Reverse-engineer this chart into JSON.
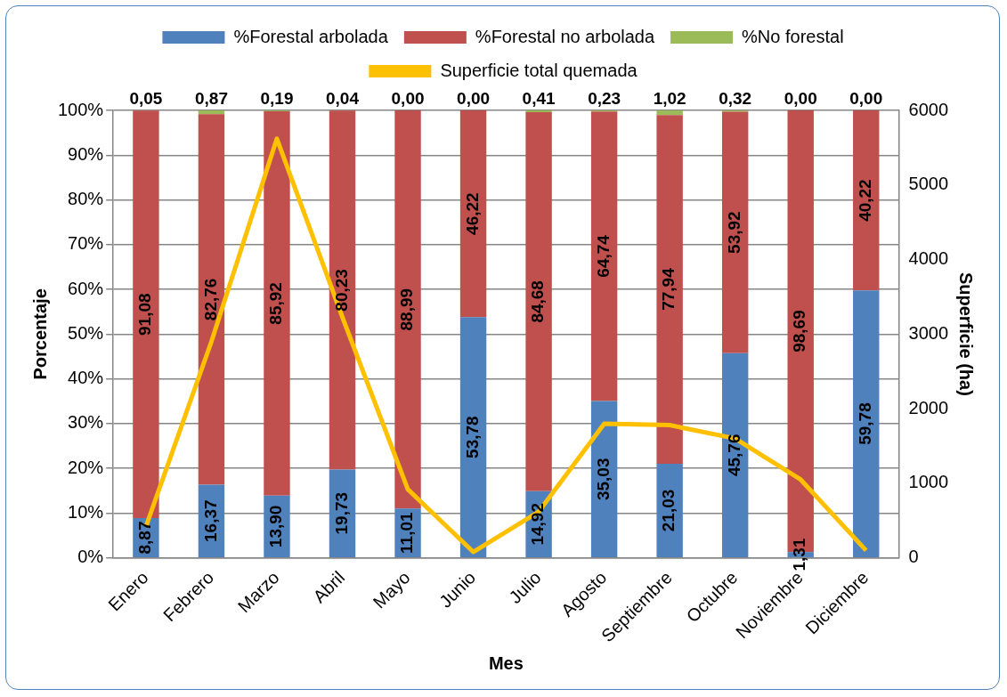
{
  "chart_data": {
    "type": "bar",
    "stacked": true,
    "xlabel": "Mes",
    "ylabel": "Porcentaje",
    "y2label": "Superficie (ha)",
    "categories": [
      "Enero",
      "Febrero",
      "Marzo",
      "Abril",
      "Mayo",
      "Junio",
      "Julio",
      "Agosto",
      "Septiembre",
      "Octubre",
      "Noviembre",
      "Diciembre"
    ],
    "series": [
      {
        "name": "%Forestal arbolada",
        "color": "#4f81bd",
        "values": [
          8.87,
          16.37,
          13.9,
          19.73,
          11.01,
          53.78,
          14.92,
          35.03,
          21.03,
          45.76,
          1.31,
          59.78
        ],
        "value_labels": [
          "8,87",
          "16,37",
          "13,90",
          "19,73",
          "11,01",
          "53,78",
          "14,92",
          "35,03",
          "21,03",
          "45,76",
          "1,31",
          "59,78"
        ]
      },
      {
        "name": "%Forestal no arbolada",
        "color": "#c0504d",
        "values": [
          91.08,
          82.76,
          85.92,
          80.23,
          88.99,
          46.22,
          84.68,
          64.74,
          77.94,
          53.92,
          98.69,
          40.22
        ],
        "value_labels": [
          "91,08",
          "82,76",
          "85,92",
          "80,23",
          "88,99",
          "46,22",
          "84,68",
          "64,74",
          "77,94",
          "53,92",
          "98,69",
          "40,22"
        ]
      },
      {
        "name": "%No forestal",
        "color": "#9bbb59",
        "values": [
          0.05,
          0.87,
          0.19,
          0.04,
          0.0,
          0.0,
          0.41,
          0.23,
          1.02,
          0.32,
          0.0,
          0.0
        ],
        "value_labels": [
          "0,05",
          "0,87",
          "0,19",
          "0,04",
          "0,00",
          "0,00",
          "0,41",
          "0,23",
          "1,02",
          "0,32",
          "0,00",
          "0,00"
        ]
      },
      {
        "name": "Superficie total quemada",
        "type": "line",
        "axis": "y2",
        "color": "#ffc000",
        "values": [
          420,
          2900,
          5620,
          3230,
          920,
          80,
          620,
          1800,
          1780,
          1600,
          1050,
          100
        ]
      }
    ],
    "ylim": [
      0,
      100
    ],
    "yticks": [
      {
        "value": 0,
        "label": "0%"
      },
      {
        "value": 10,
        "label": "10%"
      },
      {
        "value": 20,
        "label": "20%"
      },
      {
        "value": 30,
        "label": "30%"
      },
      {
        "value": 40,
        "label": "40%"
      },
      {
        "value": 50,
        "label": "50%"
      },
      {
        "value": 60,
        "label": "60%"
      },
      {
        "value": 70,
        "label": "70%"
      },
      {
        "value": 80,
        "label": "80%"
      },
      {
        "value": 90,
        "label": "90%"
      },
      {
        "value": 100,
        "label": "100%"
      }
    ],
    "y2lim": [
      0,
      6000
    ],
    "y2ticks": [
      0,
      1000,
      2000,
      3000,
      4000,
      5000,
      6000
    ],
    "grid": "y",
    "legend": "top",
    "marker": "none",
    "line_style": "solid"
  }
}
